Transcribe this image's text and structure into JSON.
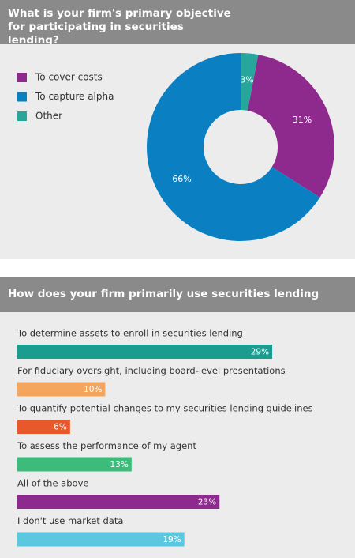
{
  "chart_data": [
    {
      "type": "donut",
      "title": "What is your firm's primary objective for participating in securities lending?",
      "categories": [
        "To cover costs",
        "To capture alpha",
        "Other"
      ],
      "values": [
        31,
        66,
        3
      ],
      "value_labels": [
        "31%",
        "66%",
        "3%"
      ],
      "colors": [
        "#8e2a8e",
        "#0a80c2",
        "#27a79b"
      ],
      "legend": "left"
    },
    {
      "type": "bar",
      "orientation": "horizontal",
      "title": "How does your firm primarily use securities lending market data?",
      "categories": [
        "To determine assets to enroll in securities lending",
        "For fiduciary oversight, including board-level presentations",
        "To quantify potential changes to my securities lending guidelines",
        "To assess the performance of my agent",
        "All of the above",
        "I don't use market data"
      ],
      "values": [
        29,
        10,
        6,
        13,
        23,
        19
      ],
      "value_labels": [
        "29%",
        "10%",
        "6%",
        "13%",
        "23%",
        "19%"
      ],
      "colors": [
        "#1a9c8e",
        "#f5a65e",
        "#e8582a",
        "#3dbb7b",
        "#8e2a8e",
        "#5cc8df"
      ]
    }
  ]
}
